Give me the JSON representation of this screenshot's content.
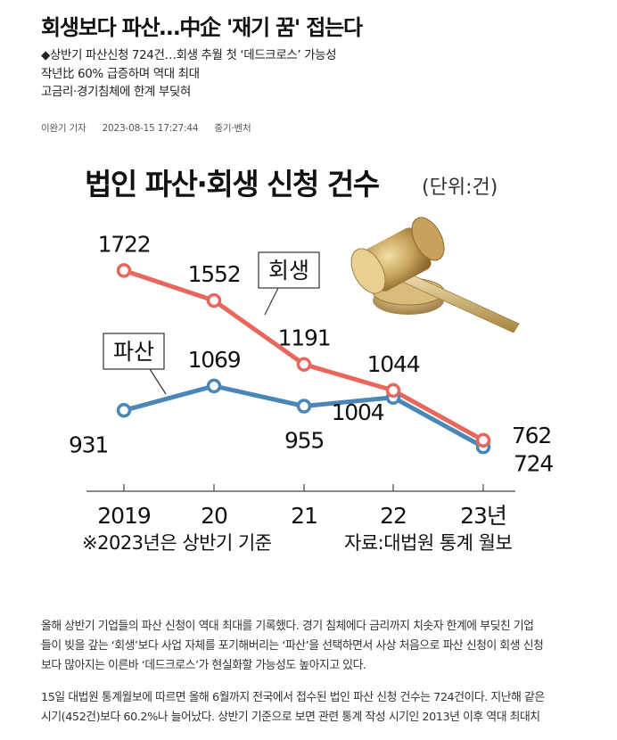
{
  "article": {
    "headline": "회생보다 파산…中企 '재기 꿈' 접는다",
    "summary": [
      "◆상반기 파산신청 724건…회생 추월 첫 ‘데드크로스’ 가능성",
      "작년比 60% 급증하며 역대 최대",
      "고금리·경기침체에 한계 부딪혀"
    ],
    "meta": {
      "author": "이완기 기자",
      "datetime": "2023-08-15 17:27:44",
      "section": "중기·벤처"
    },
    "body": [
      [
        "올해 상반기 기업들의 파산 신청이 역대 최대를 기록했다. 경기 침체에다 금리까지 치솟자 한계에 부딪친 기업",
        "들이 빚을 갚는 ‘회생’보다 사업 자체를 포기해버리는 ‘파산’을 선택하면서 사상 처음으로 파산 신청이 회생 신청",
        "보다 많아지는 이른바 ‘데드크로스’가 현실화할 가능성도 높아지고 있다."
      ],
      [
        "15일 대법원 통계월보에 따르면 올해 6월까지 전국에서 접수된 법인 파산 신청 건수는 724건이다. 지난해 같은",
        "시기(452건)보다 60.2%나 늘어났다. 상반기 기준으로 보면 관련 통계 작성 시기인 2013년 이후 역대 최대치"
      ]
    ]
  },
  "chart_data": {
    "type": "line",
    "title": "법인 파산·회생 신청 건수",
    "unit": "(단위:건)",
    "categories": [
      "2019",
      "20",
      "21",
      "22",
      "23년"
    ],
    "series": [
      {
        "name": "회생",
        "values": [
          1722,
          1552,
          1191,
          1044,
          762
        ],
        "color": "#e8675c"
      },
      {
        "name": "파산",
        "values": [
          931,
          1069,
          955,
          1004,
          724
        ],
        "color": "#4a86b8"
      }
    ],
    "ylim": [
      650,
      1850
    ],
    "footnote": "※2023년은 상반기 기준",
    "source": "자료:대법원 통계 월보",
    "grid": false,
    "illustration": "gavel-icon"
  }
}
